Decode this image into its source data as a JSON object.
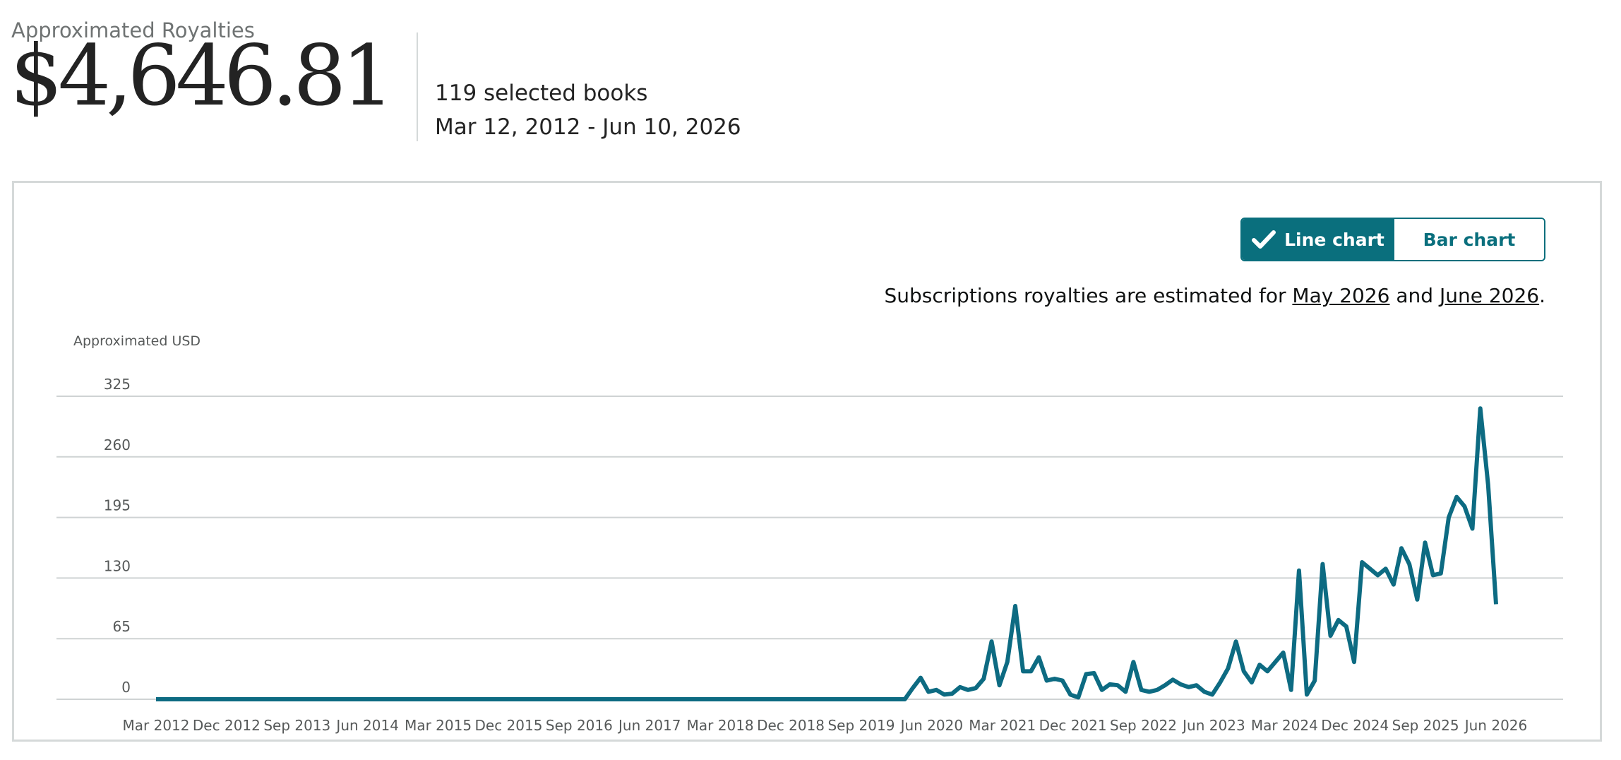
{
  "header": {
    "label": "Approximated Royalties",
    "amount": "$4,646.81",
    "books": "119 selected books",
    "date_range": "Mar 12, 2012 - Jun 10, 2026"
  },
  "toggle": {
    "line_label": "Line chart",
    "bar_label": "Bar chart",
    "active": "line"
  },
  "note": {
    "prefix": "Subscriptions royalties are estimated for ",
    "month1": "May 2026",
    "middle": " and ",
    "month2": "June 2026",
    "suffix": "."
  },
  "colors": {
    "accent": "#0a6f7d",
    "series": "#0d6b82",
    "grid": "#cfd3d4",
    "axis_text": "#565959"
  },
  "chart_data": {
    "type": "line",
    "ylabel": "Approximated USD",
    "y_ticks": [
      0,
      65,
      130,
      195,
      260,
      325
    ],
    "ylim": [
      0,
      325
    ],
    "grid": true,
    "x_tick_labels": [
      "Mar 2012",
      "Dec 2012",
      "Sep 2013",
      "Jun 2014",
      "Mar 2015",
      "Dec 2015",
      "Sep 2016",
      "Jun 2017",
      "Mar 2018",
      "Dec 2018",
      "Sep 2019",
      "Jun 2020",
      "Mar 2021",
      "Dec 2021",
      "Sep 2022",
      "Jun 2023",
      "Mar 2024",
      "Dec 2024",
      "Sep 2025",
      "Jun 2026"
    ],
    "x_start": "Mar 2012",
    "x_end": "Jun 2026",
    "series": [
      {
        "values": [
          0,
          0,
          0,
          0,
          0,
          0,
          0,
          0,
          0,
          0,
          0,
          0,
          0,
          0,
          0,
          0,
          0,
          0,
          0,
          0,
          0,
          0,
          0,
          0,
          0,
          0,
          0,
          0,
          0,
          0,
          0,
          0,
          0,
          0,
          0,
          0,
          0,
          0,
          0,
          0,
          0,
          0,
          0,
          0,
          0,
          0,
          0,
          0,
          0,
          0,
          0,
          0,
          0,
          0,
          0,
          0,
          0,
          0,
          0,
          0,
          0,
          0,
          0,
          0,
          0,
          0,
          0,
          0,
          0,
          0,
          0,
          0,
          0,
          0,
          0,
          0,
          0,
          0,
          0,
          0,
          0,
          0,
          0,
          0,
          0,
          0,
          0,
          0,
          0,
          0,
          0,
          0,
          0,
          0,
          0,
          0,
          12,
          23,
          8,
          10,
          5,
          6,
          13,
          10,
          12,
          22,
          62,
          15,
          40,
          100,
          30,
          30,
          45,
          20,
          22,
          20,
          5,
          2,
          27,
          28,
          10,
          16,
          15,
          8,
          40,
          10,
          8,
          10,
          15,
          21,
          16,
          13,
          15,
          8,
          5,
          18,
          33,
          62,
          30,
          18,
          37,
          30,
          40,
          50,
          10,
          138,
          5,
          20,
          145,
          68,
          85,
          78,
          40,
          147,
          140,
          133,
          140,
          123,
          162,
          145,
          107,
          168,
          133,
          135,
          195,
          217,
          207,
          183,
          312,
          230,
          102
        ]
      }
    ]
  }
}
